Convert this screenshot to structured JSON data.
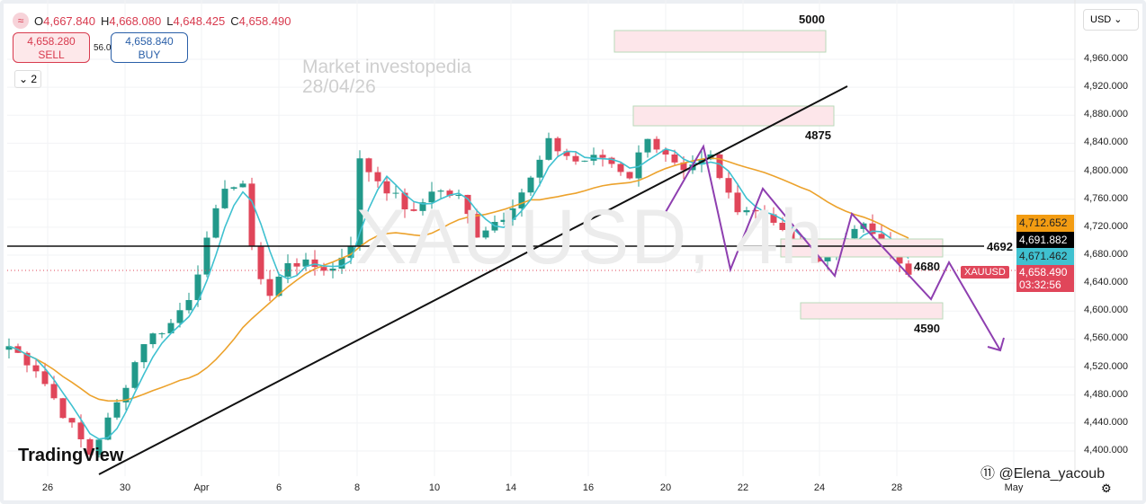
{
  "header": {
    "ohlc": [
      {
        "k": "O",
        "v": "4,667.840"
      },
      {
        "k": "H",
        "v": "4,668.080"
      },
      {
        "k": "L",
        "v": "4,648.425"
      },
      {
        "k": "C",
        "v": "4,658.490"
      }
    ],
    "sell_price": "4,658.280",
    "sell_label": "SELL",
    "spread": "56.0",
    "buy_price": "4,658.840",
    "buy_label": "BUY",
    "collapse": "⌄ 2",
    "symbol_icon": "≈"
  },
  "watermark": {
    "title": "Market investopedia",
    "date": "28/04/26",
    "symbol": "XAUUSD, 4h"
  },
  "currency": "USD ⌄",
  "y_axis": [
    "4,960.000",
    "4,920.000",
    "4,880.000",
    "4,840.000",
    "4,800.000",
    "4,760.000",
    "4,720.000",
    "4,680.000",
    "4,640.000",
    "4,600.000",
    "4,560.000",
    "4,520.000",
    "4,480.000",
    "4,440.000",
    "4,400.000"
  ],
  "x_axis": [
    "26",
    "30",
    "Apr",
    "6",
    "8",
    "10",
    "14",
    "16",
    "20",
    "22",
    "24",
    "28",
    "May"
  ],
  "price_tags": {
    "ma_slow": "4,712.652",
    "line": "4,691.882",
    "ma_fast": "4,671.462",
    "symbol": "XAUUSD",
    "last": "4,658.490",
    "countdown": "03:32:56"
  },
  "annotations": {
    "l5000": "5000",
    "l4875": "4875",
    "l4692": "4692",
    "l4680": "4680",
    "l4590": "4590"
  },
  "branding": {
    "logo": "TradingView",
    "credit": "⑪ @Elena_yacoub"
  },
  "colors": {
    "up": "#22998a",
    "down": "#e0465a",
    "ma_fast": "#3fc1d0",
    "ma_slow": "#eca22c",
    "projection": "#8e3fb0"
  },
  "chart_data": {
    "type": "candlestick",
    "timeframe": "4h",
    "ylim": [
      4380,
      4980
    ],
    "key_closes": [
      [
        0,
        4550
      ],
      [
        3,
        4518
      ],
      [
        6,
        4454
      ],
      [
        9,
        4396
      ],
      [
        12,
        4467
      ],
      [
        15,
        4557
      ],
      [
        18,
        4582
      ],
      [
        20,
        4621
      ],
      [
        22,
        4698
      ],
      [
        24,
        4781
      ],
      [
        26,
        4775
      ],
      [
        27.5,
        4660
      ],
      [
        29,
        4621
      ],
      [
        31,
        4672
      ],
      [
        33,
        4666
      ],
      [
        36,
        4660
      ],
      [
        38,
        4698
      ],
      [
        39,
        4814
      ],
      [
        42,
        4775
      ],
      [
        45,
        4737
      ],
      [
        47,
        4775
      ],
      [
        50,
        4762
      ],
      [
        52,
        4711
      ],
      [
        55,
        4737
      ],
      [
        58,
        4788
      ],
      [
        60,
        4840
      ],
      [
        63,
        4814
      ],
      [
        66,
        4820
      ],
      [
        69,
        4794
      ],
      [
        71,
        4852
      ],
      [
        72.5,
        4826
      ],
      [
        75,
        4794
      ],
      [
        78,
        4820
      ],
      [
        79,
        4788
      ],
      [
        81,
        4749
      ],
      [
        84,
        4743
      ],
      [
        87,
        4698
      ],
      [
        90,
        4679
      ],
      [
        92,
        4686
      ],
      [
        94,
        4724
      ],
      [
        96,
        4711
      ],
      [
        98,
        4679
      ],
      [
        100,
        4658
      ]
    ]
  }
}
